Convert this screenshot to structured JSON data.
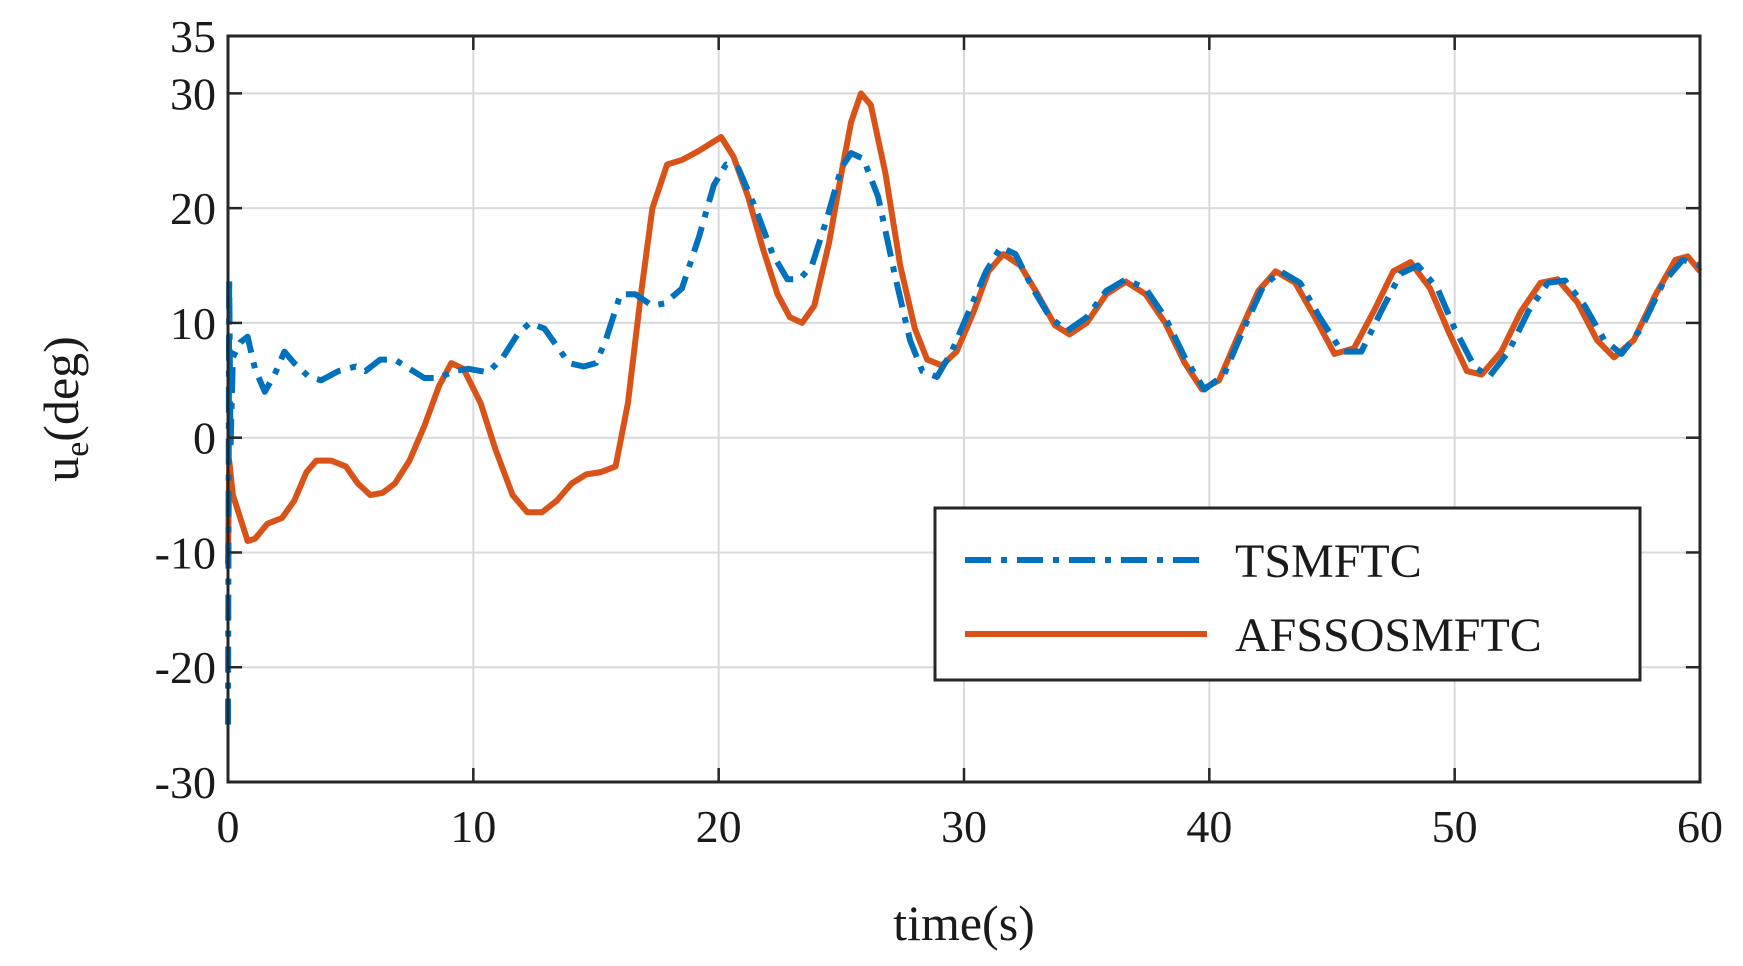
{
  "chart_data": {
    "type": "line",
    "title": "",
    "xlabel": "time(s)",
    "ylabel_main": "u",
    "ylabel_sub": "e",
    "ylabel_unit": "(deg)",
    "xlim": [
      0,
      60
    ],
    "ylim": [
      -30,
      35
    ],
    "xticks": [
      0,
      10,
      20,
      30,
      40,
      50,
      60
    ],
    "xtick_labels": [
      "0",
      "10",
      "20",
      "30",
      "40",
      "50",
      "60"
    ],
    "yticks": [
      -30,
      -20,
      -10,
      0,
      10,
      20,
      30,
      35
    ],
    "ytick_labels": [
      "-30",
      "-20",
      "-10",
      "0",
      "10",
      "20",
      "30",
      "35"
    ],
    "grid": true,
    "legend_position": "bottom-right",
    "series": [
      {
        "name": "TSMFTC",
        "color": "#0072BD",
        "style": "dash-dot",
        "points": [
          [
            0,
            -25
          ],
          [
            0.05,
            14
          ],
          [
            0.1,
            -1
          ],
          [
            0.2,
            7
          ],
          [
            0.5,
            8.3
          ],
          [
            0.8,
            8.8
          ],
          [
            1.1,
            6
          ],
          [
            1.5,
            4
          ],
          [
            1.9,
            5.5
          ],
          [
            2.3,
            7.5
          ],
          [
            2.7,
            6.5
          ],
          [
            3.3,
            5.3
          ],
          [
            3.8,
            5
          ],
          [
            4.5,
            5.8
          ],
          [
            5.2,
            6.2
          ],
          [
            5.6,
            5.8
          ],
          [
            6.2,
            6.8
          ],
          [
            6.8,
            6.8
          ],
          [
            7.4,
            6
          ],
          [
            8,
            5.2
          ],
          [
            8.6,
            5.2
          ],
          [
            9.2,
            5.8
          ],
          [
            9.8,
            6
          ],
          [
            10.6,
            5.7
          ],
          [
            11.2,
            7
          ],
          [
            11.8,
            9
          ],
          [
            12.3,
            10
          ],
          [
            12.9,
            9.5
          ],
          [
            13.4,
            8
          ],
          [
            13.9,
            6.5
          ],
          [
            14.5,
            6.2
          ],
          [
            15,
            6.5
          ],
          [
            15.4,
            8.5
          ],
          [
            16,
            12.5
          ],
          [
            16.6,
            12.5
          ],
          [
            17.3,
            11.5
          ],
          [
            17.8,
            11.7
          ],
          [
            18.5,
            13
          ],
          [
            19.2,
            17.5
          ],
          [
            19.8,
            22
          ],
          [
            20.3,
            23.8
          ],
          [
            20.8,
            23.5
          ],
          [
            21.5,
            20
          ],
          [
            22.2,
            16
          ],
          [
            22.8,
            13.8
          ],
          [
            23.3,
            13.8
          ],
          [
            23.8,
            15
          ],
          [
            24.4,
            19
          ],
          [
            25,
            23.5
          ],
          [
            25.4,
            24.8
          ],
          [
            25.9,
            24.3
          ],
          [
            26.5,
            21
          ],
          [
            27.2,
            14
          ],
          [
            27.8,
            8.5
          ],
          [
            28.3,
            5.8
          ],
          [
            28.9,
            5.3
          ],
          [
            29.5,
            7.5
          ],
          [
            30.2,
            11
          ],
          [
            30.9,
            14.5
          ],
          [
            31.5,
            16.6
          ],
          [
            32.1,
            16
          ],
          [
            32.8,
            13
          ],
          [
            33.5,
            10.5
          ],
          [
            34.2,
            9.3
          ],
          [
            35,
            10.5
          ],
          [
            35.8,
            12.8
          ],
          [
            36.6,
            13.8
          ],
          [
            37.4,
            13
          ],
          [
            38.2,
            10.5
          ],
          [
            39,
            7
          ],
          [
            39.8,
            4.2
          ],
          [
            40.6,
            5.5
          ],
          [
            41.4,
            9.5
          ],
          [
            42.2,
            13.2
          ],
          [
            42.9,
            14.5
          ],
          [
            43.7,
            13.5
          ],
          [
            44.5,
            10.5
          ],
          [
            45.4,
            7.5
          ],
          [
            46.2,
            7.5
          ],
          [
            47,
            11
          ],
          [
            47.8,
            14.3
          ],
          [
            48.5,
            15
          ],
          [
            49.3,
            13
          ],
          [
            50,
            9.5
          ],
          [
            50.8,
            6.2
          ],
          [
            51.4,
            5.3
          ],
          [
            52.2,
            7.5
          ],
          [
            53,
            11
          ],
          [
            53.8,
            13.5
          ],
          [
            54.5,
            13.7
          ],
          [
            55.3,
            11.5
          ],
          [
            56.1,
            8.5
          ],
          [
            56.8,
            7.3
          ],
          [
            57.6,
            9.5
          ],
          [
            58.5,
            13.5
          ],
          [
            59.3,
            15.5
          ],
          [
            60,
            15
          ]
        ]
      },
      {
        "name": "AFSSOSMFTC",
        "color": "#D95319",
        "style": "solid",
        "points": [
          [
            0,
            -11
          ],
          [
            0.05,
            -2
          ],
          [
            0.2,
            -5
          ],
          [
            0.5,
            -7
          ],
          [
            0.8,
            -9
          ],
          [
            1.1,
            -8.8
          ],
          [
            1.6,
            -7.5
          ],
          [
            2.2,
            -7
          ],
          [
            2.7,
            -5.5
          ],
          [
            3.2,
            -3
          ],
          [
            3.6,
            -2
          ],
          [
            4.2,
            -2
          ],
          [
            4.8,
            -2.5
          ],
          [
            5.3,
            -4
          ],
          [
            5.8,
            -5
          ],
          [
            6.3,
            -4.8
          ],
          [
            6.8,
            -4
          ],
          [
            7.4,
            -2
          ],
          [
            8,
            1
          ],
          [
            8.6,
            4.5
          ],
          [
            9.1,
            6.5
          ],
          [
            9.6,
            6
          ],
          [
            10.3,
            3
          ],
          [
            10.9,
            -1
          ],
          [
            11.6,
            -5
          ],
          [
            12.2,
            -6.5
          ],
          [
            12.8,
            -6.5
          ],
          [
            13.4,
            -5.5
          ],
          [
            14,
            -4
          ],
          [
            14.6,
            -3.2
          ],
          [
            15.2,
            -3
          ],
          [
            15.8,
            -2.5
          ],
          [
            16.3,
            3
          ],
          [
            16.8,
            12
          ],
          [
            17.3,
            20
          ],
          [
            17.9,
            23.8
          ],
          [
            18.5,
            24.2
          ],
          [
            19.2,
            25
          ],
          [
            19.8,
            25.8
          ],
          [
            20.1,
            26.2
          ],
          [
            20.6,
            24.5
          ],
          [
            21.2,
            21
          ],
          [
            21.8,
            16.5
          ],
          [
            22.4,
            12.5
          ],
          [
            22.9,
            10.5
          ],
          [
            23.4,
            10
          ],
          [
            23.9,
            11.5
          ],
          [
            24.5,
            17
          ],
          [
            25,
            23
          ],
          [
            25.4,
            27.5
          ],
          [
            25.8,
            30
          ],
          [
            26.2,
            29
          ],
          [
            26.8,
            23
          ],
          [
            27.4,
            15
          ],
          [
            28,
            9.5
          ],
          [
            28.5,
            6.8
          ],
          [
            29.1,
            6.3
          ],
          [
            29.7,
            7.5
          ],
          [
            30.4,
            11
          ],
          [
            31,
            14.5
          ],
          [
            31.6,
            16
          ],
          [
            32.3,
            15
          ],
          [
            33,
            12.5
          ],
          [
            33.7,
            9.8
          ],
          [
            34.3,
            9
          ],
          [
            35,
            10
          ],
          [
            35.8,
            12.5
          ],
          [
            36.6,
            13.6
          ],
          [
            37.4,
            12.5
          ],
          [
            38.2,
            10
          ],
          [
            39,
            6.5
          ],
          [
            39.7,
            4.2
          ],
          [
            40.4,
            5
          ],
          [
            41.2,
            9
          ],
          [
            42,
            12.8
          ],
          [
            42.7,
            14.5
          ],
          [
            43.5,
            13.5
          ],
          [
            44.3,
            10.5
          ],
          [
            45.1,
            7.3
          ],
          [
            45.9,
            7.8
          ],
          [
            46.7,
            11
          ],
          [
            47.5,
            14.5
          ],
          [
            48.2,
            15.3
          ],
          [
            49,
            13
          ],
          [
            49.8,
            9
          ],
          [
            50.5,
            5.8
          ],
          [
            51.1,
            5.5
          ],
          [
            51.9,
            7.5
          ],
          [
            52.7,
            11
          ],
          [
            53.5,
            13.5
          ],
          [
            54.2,
            13.8
          ],
          [
            55,
            11.8
          ],
          [
            55.8,
            8.5
          ],
          [
            56.5,
            7
          ],
          [
            57.3,
            8.5
          ],
          [
            58.2,
            12.5
          ],
          [
            59,
            15.5
          ],
          [
            59.5,
            15.8
          ],
          [
            60,
            14.5
          ]
        ]
      }
    ]
  }
}
